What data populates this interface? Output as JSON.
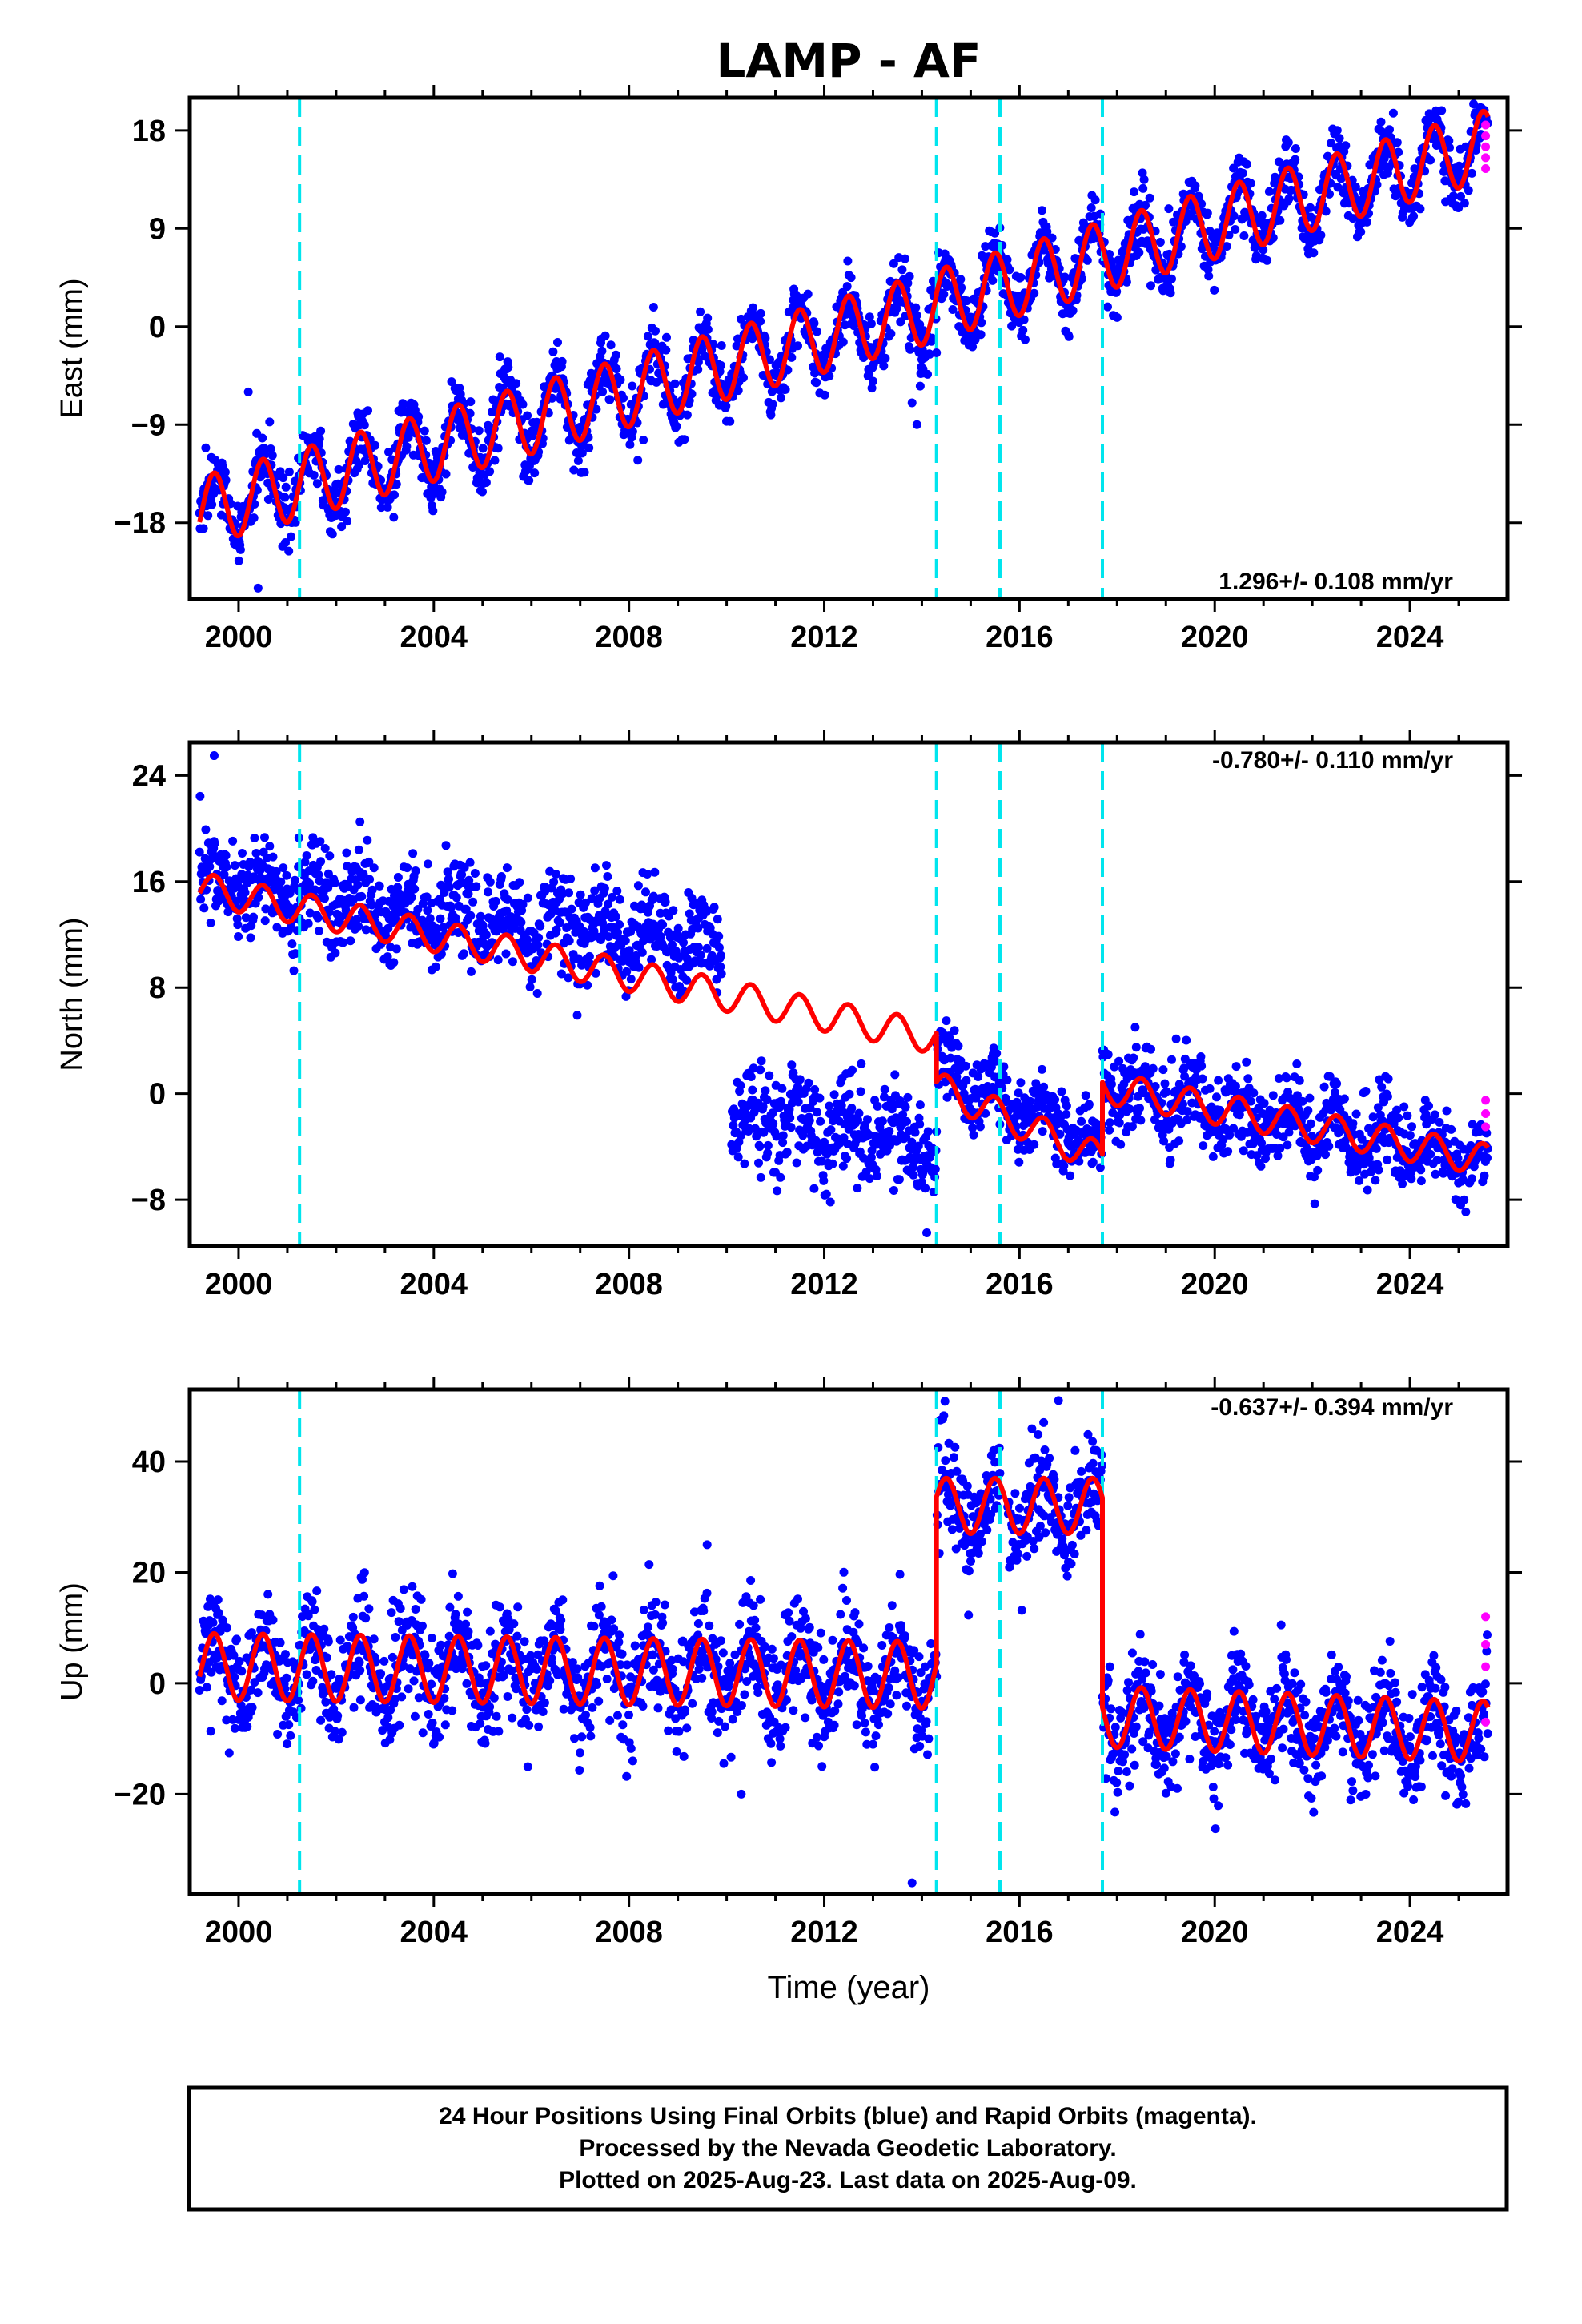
{
  "title": "LAMP - AF",
  "xlabel": "Time (year)",
  "footer": {
    "line1": "24 Hour Positions Using Final Orbits (blue) and Rapid Orbits (magenta).",
    "line2": "Processed by the Nevada Geodetic Laboratory.",
    "line3": "Plotted on 2025-Aug-23. Last data on 2025-Aug-09."
  },
  "colors": {
    "final_orbits": "#0000ff",
    "rapid_orbits": "#ff00ff",
    "model": "#ff0000",
    "steps": "#00e5ee",
    "frame": "#000000"
  },
  "chart_data": [
    {
      "type": "scatter",
      "component": "east",
      "ylabel": "East (mm)",
      "rate_label": "1.296+/- 0.108 mm/yr",
      "rate_position": "bottom-right",
      "xlim": [
        1999.0,
        2026.0
      ],
      "ylim": [
        -25,
        21
      ],
      "yticks": [
        -18,
        -9,
        0,
        9,
        18
      ],
      "ytick_labels": [
        "−18",
        "−9",
        "0",
        "9",
        "18"
      ],
      "xticks": [
        2000,
        2004,
        2008,
        2012,
        2016,
        2020,
        2024
      ],
      "xtick_labels": [
        "2000",
        "2004",
        "2008",
        "2012",
        "2016",
        "2020",
        "2024"
      ],
      "step_epochs": [
        2001.25,
        2014.3,
        2015.6,
        2017.7
      ],
      "data_span": [
        1999.2,
        2025.6
      ],
      "model_segments": [
        [
          1999.2,
          2014.3,
          -17.0,
          1.25,
          3.2
        ],
        [
          2014.3,
          2025.6,
          2.0,
          1.3,
          3.2
        ]
      ],
      "gaps": [],
      "point_scatter_mm": 1.5,
      "rapid_orbit_values": [
        14.5,
        15.5,
        16.5,
        17.5,
        18.5
      ],
      "rapid_orbit_epoch": 2025.55,
      "outliers": [
        [
          2000.2,
          -6
        ],
        [
          2013.8,
          -7
        ],
        [
          2013.9,
          -9
        ],
        [
          2000.4,
          -24
        ]
      ]
    },
    {
      "type": "scatter",
      "component": "north",
      "ylabel": "North (mm)",
      "rate_label": "-0.780+/- 0.110 mm/yr",
      "rate_position": "top-right",
      "xlim": [
        1999.0,
        2026.0
      ],
      "ylim": [
        -11.5,
        26.5
      ],
      "yticks": [
        -8,
        0,
        8,
        16,
        24
      ],
      "ytick_labels": [
        "−8",
        "0",
        "8",
        "16",
        "24"
      ],
      "xticks": [
        2000,
        2004,
        2008,
        2012,
        2016,
        2020,
        2024
      ],
      "xtick_labels": [
        "2000",
        "2004",
        "2008",
        "2012",
        "2016",
        "2020",
        "2024"
      ],
      "step_epochs": [
        2001.25,
        2014.3,
        2015.6,
        2017.7
      ],
      "data_span": [
        1999.2,
        2025.6
      ],
      "model_segments": [
        [
          1999.2,
          2014.3,
          15.5,
          -0.75,
          1.2
        ],
        [
          2014.3,
          2017.7,
          0.5,
          -1.6,
          1.2
        ],
        [
          2017.7,
          2025.6,
          0.5,
          -0.7,
          1.2
        ]
      ],
      "data_segments": [
        [
          1999.2,
          2009.9,
          16.0,
          -0.45,
          1.3,
          1.8
        ],
        [
          2010.1,
          2014.3,
          -1.5,
          -0.6,
          1.3,
          1.8
        ],
        [
          2014.3,
          2017.7,
          2.0,
          -1.8,
          1.3,
          1.5
        ],
        [
          2017.7,
          2025.6,
          0.5,
          -0.7,
          1.3,
          1.5
        ]
      ],
      "gaps": [],
      "point_scatter_mm": 1.5,
      "rapid_orbit_values": [
        -0.5,
        -1.5,
        -2.5
      ],
      "rapid_orbit_epoch": 2025.55,
      "outliers": [
        [
          1999.5,
          25.5
        ],
        [
          2014.5,
          5.5
        ],
        [
          2014.1,
          -10.5
        ]
      ]
    },
    {
      "type": "scatter",
      "component": "up",
      "ylabel": "Up (mm)",
      "rate_label": "-0.637+/- 0.394 mm/yr",
      "rate_position": "top-right",
      "xlim": [
        1999.0,
        2026.0
      ],
      "ylim": [
        -38,
        53
      ],
      "yticks": [
        -20,
        0,
        20,
        40
      ],
      "ytick_labels": [
        "−20",
        "0",
        "20",
        "40"
      ],
      "xticks": [
        2000,
        2004,
        2008,
        2012,
        2016,
        2020,
        2024
      ],
      "xtick_labels": [
        "2000",
        "2004",
        "2008",
        "2012",
        "2016",
        "2020",
        "2024"
      ],
      "step_epochs": [
        2001.25,
        2014.3,
        2015.6,
        2017.7
      ],
      "data_span": [
        1999.2,
        2025.6
      ],
      "model_segments": [
        [
          1999.2,
          2014.3,
          3.0,
          -0.1,
          6.0
        ],
        [
          2014.3,
          2017.7,
          32.0,
          0.0,
          5.0
        ],
        [
          2017.7,
          2025.6,
          -6.0,
          -0.35,
          5.5
        ]
      ],
      "gaps": [
        [
          2015.6,
          2015.75
        ]
      ],
      "point_scatter_mm": 5.0,
      "rapid_orbit_values": [
        12,
        7,
        3,
        -7
      ],
      "rapid_orbit_epoch": 2025.55,
      "outliers": [
        [
          2013.8,
          -36
        ],
        [
          2016.8,
          51
        ],
        [
          2009.6,
          25
        ],
        [
          2010.3,
          -20
        ]
      ]
    }
  ]
}
